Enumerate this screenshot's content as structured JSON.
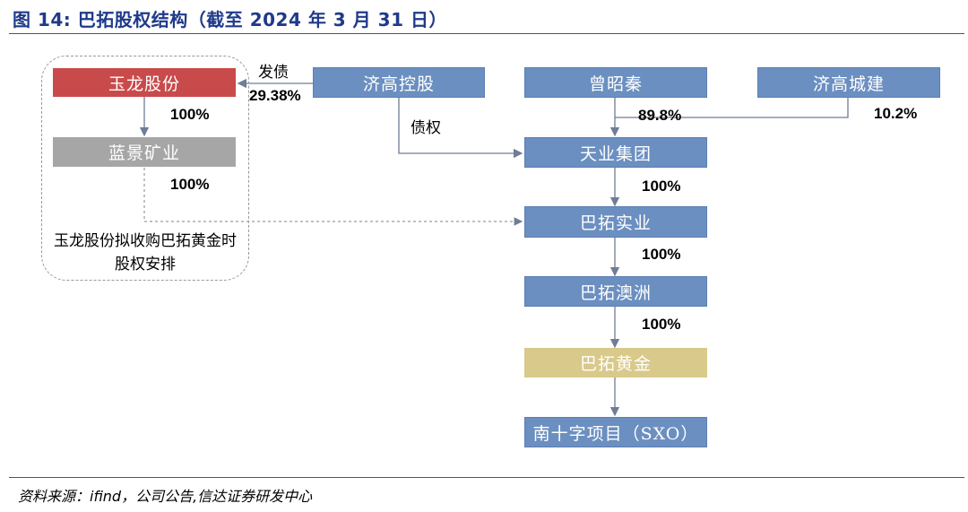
{
  "title": "图 14:  巴拓股权结构（截至 2024 年 3 月 31 日）",
  "source": "资料来源：ifind，公司公告,信达证券研发中心",
  "colors": {
    "title": "#1f3a8a",
    "blue_box": "#6b8fc0",
    "red_box": "#c94a4a",
    "gray_box": "#a6a6a6",
    "gold_box": "#d9c98a",
    "connector": "#6f7d95"
  },
  "entities": {
    "yulong": "玉龙股份",
    "lanjing": "蓝景矿业",
    "jigao_holding": "济高控股",
    "zeng": "曾昭秦",
    "jigao_construction": "济高城建",
    "tianye": "天业集团",
    "batuo_industry": "巴拓实业",
    "batuo_australia": "巴拓澳洲",
    "batuo_gold": "巴拓黄金",
    "project": "南十字项目（SXO）"
  },
  "edges": {
    "bond_issue_label": "发债",
    "bond_issue_pct": "29.38%",
    "yulong_lanjing_pct": "100%",
    "lanjing_batuo_pct": "100%",
    "debt_label": "债权",
    "zeng_tianye_pct": "89.8%",
    "construction_tianye_pct": "10.2%",
    "tianye_batuo_pct": "100%",
    "batuo_australia_pct": "100%",
    "australia_gold_pct": "100%"
  },
  "group_note": "玉龙股份拟收购巴拓黄金时股权安排"
}
